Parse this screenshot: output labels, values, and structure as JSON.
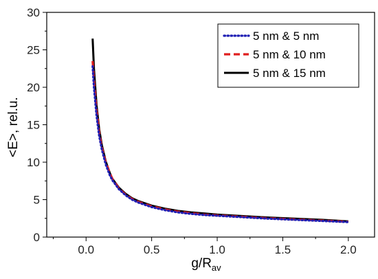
{
  "chart_data": {
    "type": "line",
    "title": "",
    "xlabel": "g/R",
    "xlabel_sub": "av",
    "ylabel": "<E>, rel.u.",
    "xlim": [
      -0.3,
      2.2
    ],
    "ylim": [
      0,
      30
    ],
    "xticks": [
      0.0,
      0.5,
      1.0,
      1.5,
      2.0
    ],
    "xtick_labels": [
      "0.0",
      "0.5",
      "1.0",
      "1.5",
      "2.0"
    ],
    "yticks": [
      0,
      5,
      10,
      15,
      20,
      25,
      30
    ],
    "ytick_labels": [
      "0",
      "5",
      "10",
      "15",
      "20",
      "25",
      "30"
    ],
    "grid": false,
    "legend_position": "top-right",
    "x": [
      0.05,
      0.06,
      0.08,
      0.1,
      0.12,
      0.15,
      0.18,
      0.2,
      0.25,
      0.3,
      0.35,
      0.4,
      0.5,
      0.6,
      0.7,
      0.8,
      0.9,
      1.0,
      1.2,
      1.4,
      1.6,
      1.8,
      2.0
    ],
    "series": [
      {
        "name": "5 nm & 5 nm",
        "color": "#1f1fb4",
        "style": "dotted",
        "values": [
          22.8,
          20.0,
          16.2,
          13.5,
          11.7,
          9.7,
          8.3,
          7.6,
          6.4,
          5.6,
          5.0,
          4.6,
          4.0,
          3.6,
          3.3,
          3.1,
          2.95,
          2.85,
          2.65,
          2.45,
          2.3,
          2.15,
          2.0
        ]
      },
      {
        "name": "5 nm & 10 nm",
        "color": "#e01e1e",
        "style": "dashed",
        "values": [
          23.5,
          21.0,
          17.0,
          14.0,
          12.0,
          10.0,
          8.6,
          7.8,
          6.5,
          5.7,
          5.1,
          4.7,
          4.1,
          3.7,
          3.4,
          3.2,
          3.0,
          2.9,
          2.7,
          2.5,
          2.35,
          2.2,
          2.05
        ]
      },
      {
        "name": "5 nm & 15 nm",
        "color": "#000000",
        "style": "solid",
        "values": [
          26.5,
          22.5,
          17.6,
          14.4,
          12.3,
          10.1,
          8.6,
          7.8,
          6.6,
          5.8,
          5.2,
          4.8,
          4.2,
          3.8,
          3.5,
          3.3,
          3.15,
          3.0,
          2.8,
          2.6,
          2.45,
          2.3,
          2.1
        ]
      }
    ]
  }
}
